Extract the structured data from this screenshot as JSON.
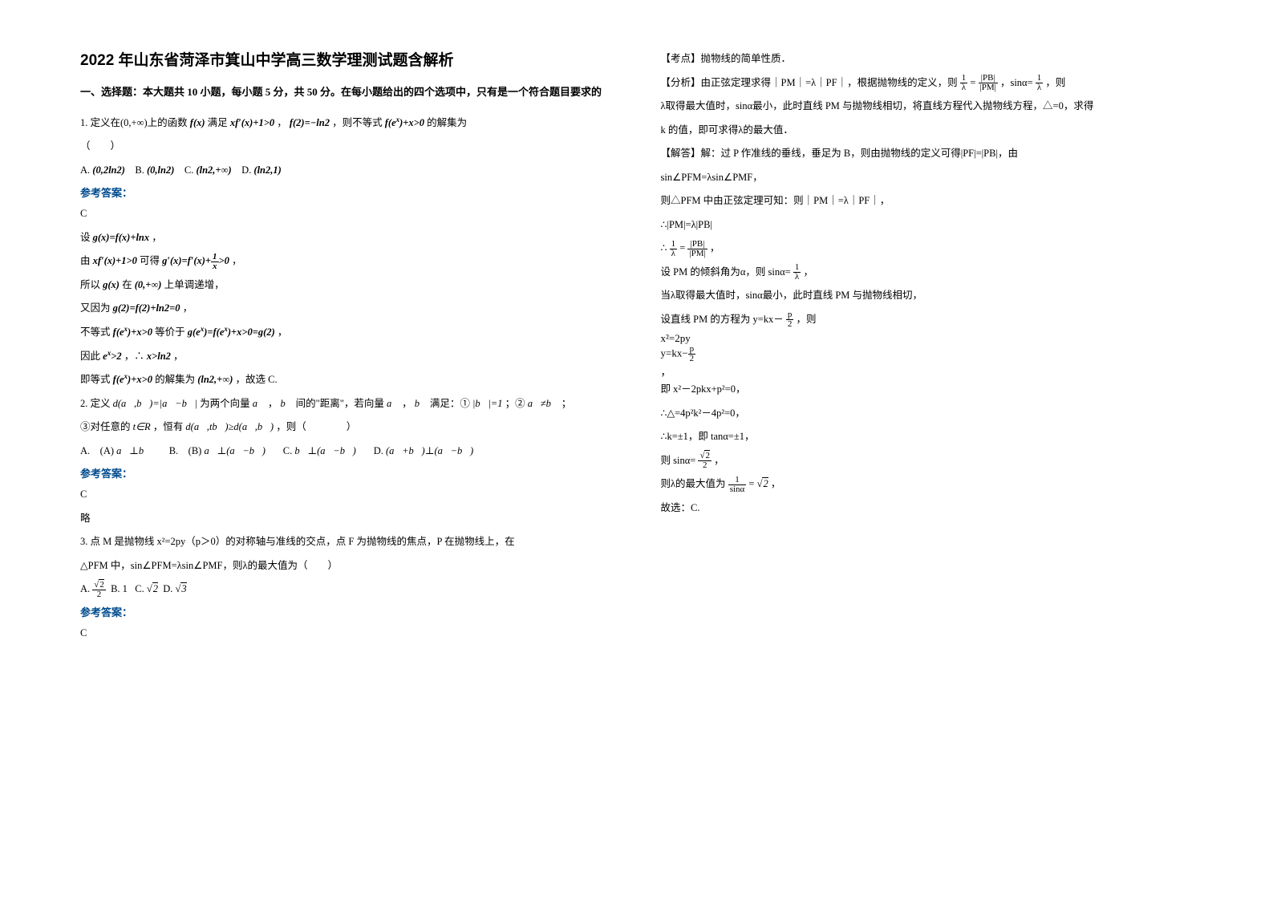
{
  "title": "2022 年山东省菏泽市箕山中学高三数学理测试题含解析",
  "section_header": "一、选择题：本大题共 10 小题，每小题 5 分，共 50 分。在每小题给出的四个选项中，只有是一个符合题目要求的",
  "answer_label": "参考答案：",
  "left": {
    "q1_text": "1. 定义在(0,+∞)上的函数",
    "q1_text2": "满足",
    "q1_text3": "，",
    "q1_text4": "，则不等式",
    "q1_text5": "的解集为",
    "q1_paren": "（　　）",
    "q1_optA": "A.",
    "q1_optA_val": "(0,2ln2)",
    "q1_optB": "B.",
    "q1_optB_val": "(0,ln2)",
    "q1_optC": "C.",
    "q1_optC_val": "(ln2,+∞)",
    "q1_optD": "D.",
    "q1_optD_val": "(ln2,1)",
    "q1_answer": "C",
    "q1_sol1": "设",
    "q1_sol1b": "，",
    "q1_sol2": "由",
    "q1_sol2b": "可得",
    "q1_sol2c": "，",
    "q1_sol3": "所以",
    "q1_sol3b": "在",
    "q1_sol3c": "上单调递增，",
    "q1_sol4": "又因为",
    "q1_sol4b": "，",
    "q1_sol5": "不等式",
    "q1_sol5b": "等价于",
    "q1_sol5c": "，",
    "q1_sol6": "因此",
    "q1_sol6b": "，∴",
    "q1_sol6c": "，",
    "q1_sol7": "即等式",
    "q1_sol7b": "的解集为",
    "q1_sol7c": "，故选 C.",
    "q2_text": "2. 定义",
    "q2_text2": "为两个向量",
    "q2_text3": "，",
    "q2_text4": "间的\"距离\"，若向量",
    "q2_text5": "，",
    "q2_text6": "满足：①",
    "q2_text7": "；②",
    "q2_text8": "；",
    "q2_line2a": "③对任意的",
    "q2_line2b": "，恒有",
    "q2_line2c": "，则（　　　　）",
    "q2_optA": "A.　(A)",
    "q2_optB": "B.　(B)",
    "q2_optC": "C.",
    "q2_optD": "D.",
    "q2_answer": "C",
    "q2_brief": "略",
    "q3_text": "3. 点 M 是抛物线 x²=2py（p＞0）的对称轴与准线的交点，点 F 为抛物线的焦点，P 在抛物线上，在",
    "q3_text2": "△PFM 中，sin∠PFM=λsin∠PMF，则λ的最大值为（　　）",
    "q3_optA": "A.",
    "q3_optB": "B. 1",
    "q3_optC": "C.",
    "q3_optD": "D.",
    "q3_answer": "C"
  },
  "right": {
    "r1": "【考点】抛物线的简单性质．",
    "r2a": "【分析】由正弦定理求得｜PM｜=λ｜PF｜，根据抛物线的定义，则",
    "r2b": "=",
    "r2c": "，sinα=",
    "r2d": "，则",
    "r3": "λ取得最大值时，sinα最小，此时直线 PM 与抛物线相切，将直线方程代入抛物线方程，△=0，求得",
    "r4": "k 的值，即可求得λ的最大值．",
    "r5": "【解答】解：过 P 作准线的垂线，垂足为 B，则由抛物线的定义可得|PF|=|PB|，由",
    "r6": "sin∠PFM=λsin∠PMF，",
    "r7": "则△PFM 中由正弦定理可知：则｜PM｜=λ｜PF｜，",
    "r8": "∴|PM|=λ|PB|",
    "r9a": "∴",
    "r9b": "=",
    "r9c": "，",
    "r10a": "设 PM 的倾斜角为α，则 sinα=",
    "r10b": "，",
    "r11": "当λ取得最大值时，sinα最小，此时直线 PM 与抛物线相切，",
    "r12a": "设直线 PM 的方程为 y=kx－",
    "r12b": "，则",
    "r12c": "，",
    "r13": "即 x²－2pkx+p²=0，",
    "r14": "∴△=4p²k²－4p²=0，",
    "r15": "∴k=±1，即 tanα=±1，",
    "r16a": "则 sinα=",
    "r16b": "，",
    "r17a": "则λ的最大值为",
    "r17b": "=",
    "r17c": "，",
    "r18": "故选：C."
  }
}
